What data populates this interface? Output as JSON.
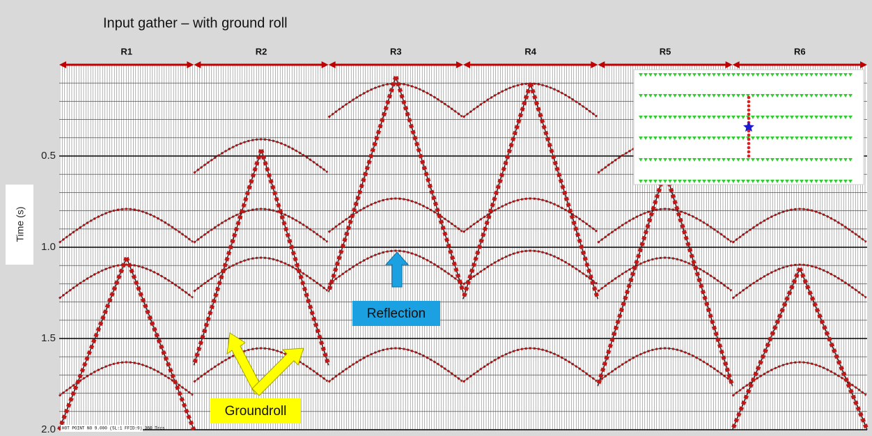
{
  "chart_data": {
    "type": "gather",
    "title": "Input gather – with ground roll",
    "y_label": "Time (s)",
    "sections": [
      "R1",
      "R2",
      "R3",
      "R4",
      "R5",
      "R6"
    ],
    "ylim": [
      0,
      2.0
    ],
    "yticks": [
      0.5,
      {
        "value": 1.0,
        "label": "1.0"
      },
      1.5,
      {
        "value": 2.0,
        "label": "2.0"
      }
    ],
    "annotations": [
      "Reflection",
      "Groundroll"
    ],
    "footer": "HOT POINT NO 9.000 (SL:1 FFID:9) 360 Trcs"
  }
}
